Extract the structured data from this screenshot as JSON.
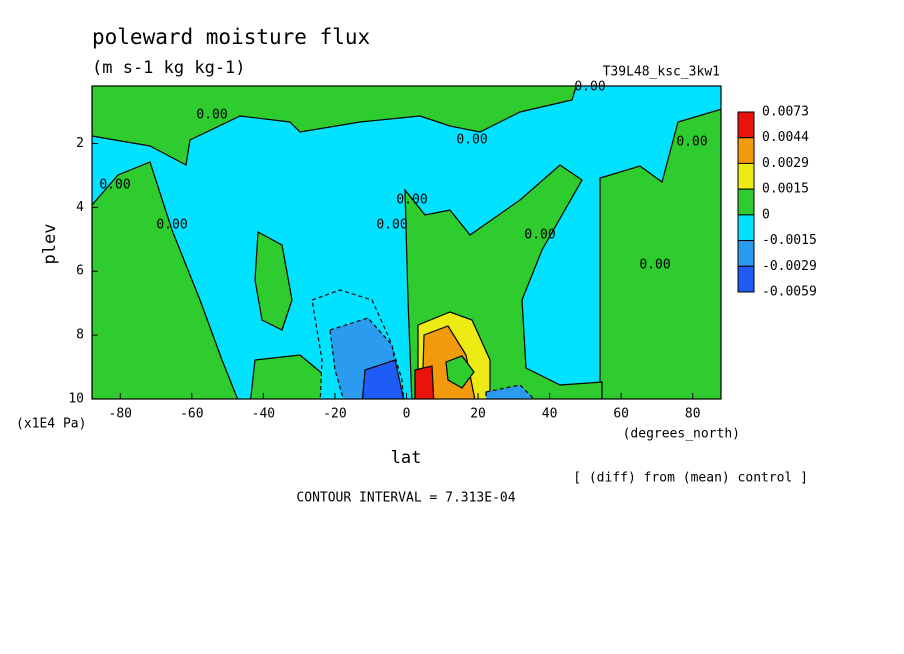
{
  "chart_data": {
    "type": "contour",
    "title": "poleward moisture flux",
    "subtitle": "(m s-1 kg kg-1)",
    "run_label": "T39L48_ksc_3kw1",
    "xlabel": "lat",
    "xunits": "(degrees_north)",
    "ylabel": "plev",
    "yunits": "(x1E4 Pa)",
    "note": "[ (diff) from (mean) control ]",
    "contour_interval": "CONTOUR INTERVAL = 7.313E-04",
    "xlim": [
      -87.9,
      87.9
    ],
    "xticks": [
      -80,
      -60,
      -40,
      -20,
      0,
      20,
      40,
      60,
      80
    ],
    "ylim": [
      0.2,
      10
    ],
    "y_inverted": true,
    "yticks": [
      2,
      4,
      6,
      8,
      10
    ],
    "colorbar": {
      "levels": [
        0.0073,
        0.0044,
        0.0029,
        0.0015,
        0,
        -0.0015,
        -0.0029,
        -0.0059
      ],
      "colors": [
        "#e8140c",
        "#f29a0c",
        "#ecec14",
        "#2ecc2e",
        "#00e2ff",
        "#2a9bef",
        "#1e5cf5"
      ]
    },
    "contour_labels": [
      "0.00",
      "0.00",
      "0.00",
      "0.00",
      "0.00",
      "0.00",
      "0.00",
      "0.00",
      "0.00",
      "0.00"
    ]
  }
}
